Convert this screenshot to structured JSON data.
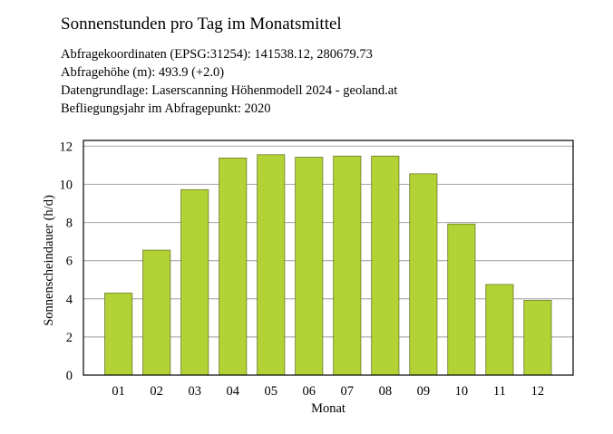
{
  "header": {
    "title": "Sonnenstunden pro Tag im Monatsmittel",
    "lines": [
      "Abfragekoordinaten (EPSG:31254): 141538.12, 280679.73",
      "Abfragehöhe (m): 493.9 (+2.0)",
      "Datengrundlage: Laserscanning Höhenmodell 2024 - geoland.at",
      "Befliegungsjahr im Abfragepunkt: 2020"
    ]
  },
  "chart_data": {
    "type": "bar",
    "title": "Sonnenstunden pro Tag im Monatsmittel",
    "xlabel": "Monat",
    "ylabel": "Sonnenscheindauer (h/d)",
    "categories": [
      "01",
      "02",
      "03",
      "04",
      "05",
      "06",
      "07",
      "08",
      "09",
      "10",
      "11",
      "12"
    ],
    "values": [
      4.3,
      6.55,
      9.72,
      11.38,
      11.55,
      11.42,
      11.48,
      11.48,
      10.55,
      7.92,
      4.75,
      3.92
    ],
    "ylim": [
      0,
      12.3
    ],
    "yticks": [
      0,
      2,
      4,
      6,
      8,
      10,
      12
    ],
    "grid": "horizontal",
    "legend": "none",
    "bar_color": "#b2d235",
    "bar_edge_color": "#6b7a2a",
    "grid_color": "#b0b0b0"
  }
}
